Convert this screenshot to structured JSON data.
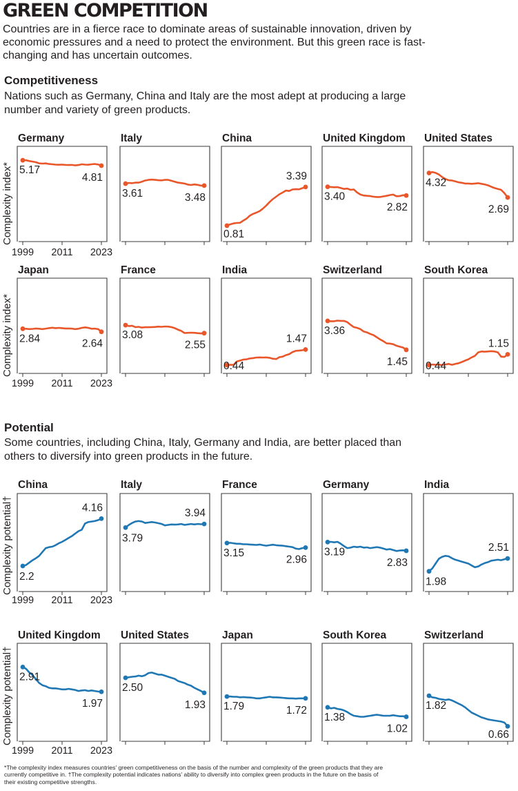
{
  "title": "GREEN COMPETITION",
  "intro": "Countries are in a fierce race to dominate areas of sustainable innovation, driven by economic pressures and a need to protect the environment. But this green race is fast-changing and has uncertain outcomes.",
  "colors": {
    "competitiveness": "#e8562a",
    "potential": "#1f77b4",
    "frame": "#3a3a3a"
  },
  "sections": {
    "competitiveness": {
      "heading": "Competitiveness",
      "description": "Nations such as Germany, China and Italy are the most adept at producing a large number and variety of green products.",
      "ylabel": "Complexity index*"
    },
    "potential": {
      "heading": "Potential",
      "description": "Some countries, including China, Italy, Germany and India, are better placed than others to diversify into green products in the future.",
      "ylabel": "Complexity potential†"
    }
  },
  "axis_labels": [
    "1999",
    "2011",
    "2023"
  ],
  "footnote": "*The complexity index measures countries' green competitiveness on the basis of the number and complexity of the green products that they are currently competitive in. †The complexity potential indicates nations' ability to diversify into complex green products in the future on the basis of their existing competitive strengths.",
  "chart_data": [
    {
      "type": "line",
      "group": "competitiveness",
      "x": [
        1999,
        2000,
        2001,
        2002,
        2003,
        2004,
        2005,
        2006,
        2007,
        2008,
        2009,
        2010,
        2011,
        2012,
        2013,
        2014,
        2015,
        2016,
        2017,
        2018,
        2019,
        2020,
        2021,
        2022,
        2023
      ],
      "ylim": [
        0.3,
        5.5
      ],
      "xlabel": "",
      "ylabel": "Complexity index*",
      "series": [
        {
          "name": "Germany",
          "start_label": "5.17",
          "end_label": "4.81",
          "values": [
            5.17,
            5.17,
            5.12,
            5.08,
            5.04,
            4.96,
            4.95,
            4.96,
            4.92,
            4.9,
            4.88,
            4.87,
            4.88,
            4.86,
            4.85,
            4.86,
            4.83,
            4.85,
            4.9,
            4.88,
            4.87,
            4.9,
            4.92,
            4.89,
            4.81
          ]
        },
        {
          "name": "Italy",
          "start_label": "3.61",
          "end_label": "3.48",
          "values": [
            3.61,
            3.66,
            3.64,
            3.68,
            3.68,
            3.74,
            3.82,
            3.86,
            3.88,
            3.86,
            3.84,
            3.83,
            3.86,
            3.86,
            3.8,
            3.74,
            3.68,
            3.65,
            3.62,
            3.55,
            3.52,
            3.56,
            3.53,
            3.48,
            3.48
          ]
        },
        {
          "name": "China",
          "start_label": "0.81",
          "end_label": "3.39",
          "values": [
            0.81,
            0.9,
            0.96,
            0.99,
            1.0,
            1.15,
            1.28,
            1.48,
            1.6,
            1.68,
            1.78,
            1.95,
            2.15,
            2.38,
            2.58,
            2.74,
            2.9,
            3.02,
            3.15,
            3.12,
            3.22,
            3.24,
            3.23,
            3.31,
            3.39
          ]
        },
        {
          "name": "United Kingdom",
          "start_label": "3.40",
          "end_label": "2.82",
          "values": [
            3.4,
            3.39,
            3.37,
            3.38,
            3.32,
            3.26,
            3.28,
            3.2,
            3.22,
            3.02,
            2.88,
            2.82,
            2.8,
            2.78,
            2.74,
            2.72,
            2.72,
            2.76,
            2.8,
            2.85,
            2.88,
            2.77,
            2.78,
            2.84,
            2.82
          ]
        },
        {
          "name": "United States",
          "start_label": "4.32",
          "end_label": "2.69",
          "values": [
            4.32,
            4.38,
            4.33,
            4.22,
            4.05,
            3.92,
            3.84,
            3.82,
            3.76,
            3.7,
            3.67,
            3.62,
            3.62,
            3.6,
            3.62,
            3.64,
            3.6,
            3.56,
            3.5,
            3.4,
            3.32,
            3.26,
            3.2,
            2.98,
            2.69
          ]
        }
      ]
    },
    {
      "type": "line",
      "group": "competitiveness",
      "x": [
        1999,
        2000,
        2001,
        2002,
        2003,
        2004,
        2005,
        2006,
        2007,
        2008,
        2009,
        2010,
        2011,
        2012,
        2013,
        2014,
        2015,
        2016,
        2017,
        2018,
        2019,
        2020,
        2021,
        2022,
        2023
      ],
      "ylim": [
        0.3,
        5.5
      ],
      "xlabel": "",
      "ylabel": "Complexity index*",
      "series": [
        {
          "name": "Japan",
          "start_label": "2.84",
          "end_label": "2.64",
          "values": [
            2.84,
            2.84,
            2.82,
            2.83,
            2.86,
            2.84,
            2.82,
            2.85,
            2.88,
            2.91,
            2.88,
            2.9,
            2.88,
            2.86,
            2.86,
            2.85,
            2.82,
            2.84,
            2.9,
            2.93,
            2.9,
            2.84,
            2.85,
            2.82,
            2.64
          ]
        },
        {
          "name": "France",
          "start_label": "3.08",
          "end_label": "2.55",
          "values": [
            3.08,
            3.02,
            3.04,
            2.95,
            2.97,
            2.92,
            2.94,
            2.94,
            2.95,
            2.96,
            2.98,
            2.97,
            2.99,
            2.98,
            2.95,
            2.88,
            2.78,
            2.7,
            2.56,
            2.57,
            2.58,
            2.57,
            2.55,
            2.53,
            2.55
          ]
        },
        {
          "name": "India",
          "start_label": "0.44",
          "end_label": "1.47",
          "values": [
            0.44,
            0.46,
            0.45,
            0.68,
            0.74,
            0.8,
            0.82,
            0.88,
            0.9,
            0.94,
            0.95,
            0.94,
            0.95,
            0.92,
            0.86,
            0.84,
            0.96,
            1.0,
            1.1,
            1.16,
            1.3,
            1.38,
            1.4,
            1.42,
            1.47
          ]
        },
        {
          "name": "Switzerland",
          "start_label": "3.36",
          "end_label": "1.45",
          "values": [
            3.36,
            3.34,
            3.34,
            3.38,
            3.36,
            3.36,
            3.28,
            3.1,
            2.95,
            2.9,
            2.82,
            2.66,
            2.6,
            2.5,
            2.42,
            2.28,
            2.14,
            2.02,
            1.88,
            1.86,
            1.82,
            1.72,
            1.66,
            1.6,
            1.45
          ]
        },
        {
          "name": "South Korea",
          "start_label": "0.44",
          "end_label": "1.15",
          "values": [
            0.44,
            0.48,
            0.46,
            0.47,
            0.44,
            0.48,
            0.52,
            0.46,
            0.52,
            0.56,
            0.64,
            0.74,
            0.82,
            0.95,
            1.05,
            1.28,
            1.34,
            1.32,
            1.34,
            1.36,
            1.34,
            1.28,
            1.0,
            0.98,
            1.15
          ]
        }
      ]
    },
    {
      "type": "line",
      "group": "potential",
      "x": [
        1999,
        2000,
        2001,
        2002,
        2003,
        2004,
        2005,
        2006,
        2007,
        2008,
        2009,
        2010,
        2011,
        2012,
        2013,
        2014,
        2015,
        2016,
        2017,
        2018,
        2019,
        2020,
        2021,
        2022,
        2023
      ],
      "ylim": [
        1.4,
        5.0
      ],
      "xlabel": "",
      "ylabel": "Complexity potential†",
      "series": [
        {
          "name": "China",
          "start_label": "2.2",
          "end_label": "4.16",
          "values": [
            2.2,
            2.24,
            2.34,
            2.44,
            2.52,
            2.62,
            2.78,
            2.94,
            2.98,
            3.0,
            3.06,
            3.14,
            3.2,
            3.28,
            3.36,
            3.44,
            3.54,
            3.64,
            3.7,
            3.96,
            4.02,
            4.04,
            4.06,
            4.1,
            4.16
          ]
        },
        {
          "name": "Italy",
          "start_label": "3.79",
          "end_label": "3.94",
          "values": [
            3.79,
            3.9,
            3.98,
            4.04,
            4.06,
            4.04,
            3.98,
            4.0,
            4.02,
            4.0,
            3.97,
            3.94,
            3.88,
            3.9,
            3.92,
            3.91,
            3.92,
            3.94,
            3.9,
            3.92,
            3.94,
            3.92,
            3.94,
            3.93,
            3.94
          ]
        },
        {
          "name": "France",
          "start_label": "3.15",
          "end_label": "2.96",
          "values": [
            3.15,
            3.16,
            3.14,
            3.12,
            3.12,
            3.1,
            3.1,
            3.09,
            3.08,
            3.07,
            3.09,
            3.06,
            3.04,
            3.06,
            3.08,
            3.06,
            3.05,
            3.04,
            3.02,
            3.0,
            2.98,
            2.92,
            2.9,
            2.94,
            2.96
          ]
        },
        {
          "name": "Germany",
          "start_label": "3.19",
          "end_label": "2.83",
          "values": [
            3.19,
            3.2,
            3.18,
            3.2,
            3.12,
            3.02,
            2.94,
            2.96,
            3.0,
            2.98,
            3.0,
            2.96,
            2.97,
            2.94,
            2.96,
            2.98,
            2.96,
            2.92,
            2.88,
            2.9,
            2.86,
            2.82,
            2.84,
            2.85,
            2.83
          ]
        },
        {
          "name": "India",
          "start_label": "1.98",
          "end_label": "2.51",
          "values": [
            1.98,
            2.1,
            2.3,
            2.5,
            2.58,
            2.62,
            2.6,
            2.52,
            2.46,
            2.42,
            2.38,
            2.34,
            2.3,
            2.22,
            2.15,
            2.18,
            2.26,
            2.32,
            2.36,
            2.42,
            2.44,
            2.46,
            2.44,
            2.48,
            2.51
          ]
        }
      ]
    },
    {
      "type": "line",
      "group": "potential",
      "x": [
        1999,
        2000,
        2001,
        2002,
        2003,
        2004,
        2005,
        2006,
        2007,
        2008,
        2009,
        2010,
        2011,
        2012,
        2013,
        2014,
        2015,
        2016,
        2017,
        2018,
        2019,
        2020,
        2021,
        2022,
        2023
      ],
      "ylim": [
        0.3,
        3.6
      ],
      "xlabel": "",
      "ylabel": "Complexity potential†",
      "series": [
        {
          "name": "United Kingdom",
          "start_label": "2.91",
          "end_label": "1.97",
          "values": [
            2.91,
            2.84,
            2.7,
            2.6,
            2.45,
            2.3,
            2.22,
            2.18,
            2.12,
            2.1,
            2.1,
            2.08,
            2.06,
            2.06,
            2.08,
            2.06,
            2.04,
            2.0,
            2.02,
            2.03,
            2.0,
            2.02,
            2.0,
            1.98,
            1.97
          ]
        },
        {
          "name": "United States",
          "start_label": "2.50",
          "end_label": "1.93",
          "values": [
            2.5,
            2.52,
            2.54,
            2.55,
            2.58,
            2.56,
            2.6,
            2.68,
            2.7,
            2.66,
            2.62,
            2.62,
            2.58,
            2.54,
            2.5,
            2.46,
            2.38,
            2.34,
            2.3,
            2.24,
            2.2,
            2.12,
            2.06,
            2.0,
            1.93
          ]
        },
        {
          "name": "Japan",
          "start_label": "1.79",
          "end_label": "1.72",
          "values": [
            1.79,
            1.79,
            1.78,
            1.78,
            1.76,
            1.77,
            1.76,
            1.75,
            1.74,
            1.72,
            1.72,
            1.74,
            1.76,
            1.78,
            1.76,
            1.76,
            1.75,
            1.74,
            1.73,
            1.72,
            1.72,
            1.71,
            1.72,
            1.72,
            1.72
          ]
        },
        {
          "name": "South Korea",
          "start_label": "1.38",
          "end_label": "1.02",
          "values": [
            1.38,
            1.34,
            1.36,
            1.32,
            1.3,
            1.26,
            1.2,
            1.12,
            1.06,
            1.04,
            1.02,
            1.02,
            1.04,
            1.06,
            1.08,
            1.1,
            1.08,
            1.06,
            1.06,
            1.06,
            1.08,
            1.06,
            1.04,
            1.04,
            1.02
          ]
        },
        {
          "name": "Switzerland",
          "start_label": "1.82",
          "end_label": "0.66",
          "values": [
            1.82,
            1.76,
            1.74,
            1.7,
            1.68,
            1.66,
            1.68,
            1.64,
            1.58,
            1.52,
            1.46,
            1.38,
            1.28,
            1.18,
            1.12,
            1.06,
            1.0,
            0.96,
            0.92,
            0.9,
            0.88,
            0.86,
            0.84,
            0.8,
            0.66
          ]
        }
      ]
    }
  ]
}
